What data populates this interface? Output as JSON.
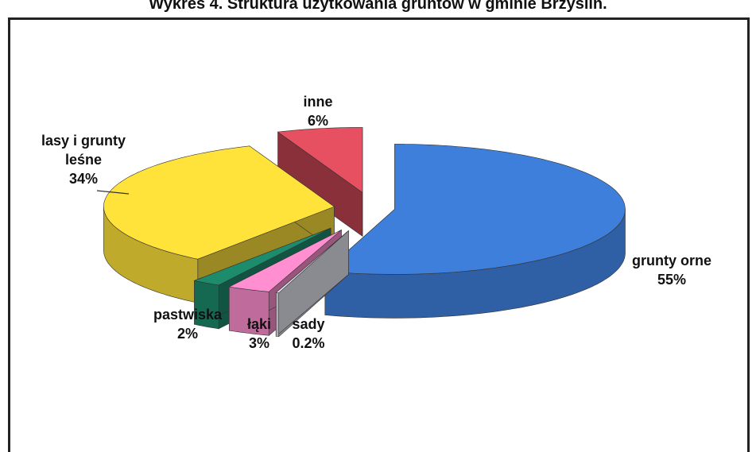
{
  "chart_data": {
    "type": "pie3d",
    "title": "Wykres 4. Struktura użytkowania gruntów w gminie Brzyślin.",
    "categories": [
      "grunty orne",
      "sady",
      "łąki",
      "pastwiska",
      "lasy i  grunty leśne",
      "inne"
    ],
    "values": [
      55,
      0.2,
      3,
      2,
      34,
      6
    ],
    "value_labels": [
      "55%",
      "0.2%",
      "3%",
      "2%",
      "34%",
      "6%"
    ],
    "colors": [
      "#3f7fdc",
      "#e6e6f2",
      "#ff8fd0",
      "#1d8c6c",
      "#ffe23a",
      "#e65060"
    ]
  }
}
